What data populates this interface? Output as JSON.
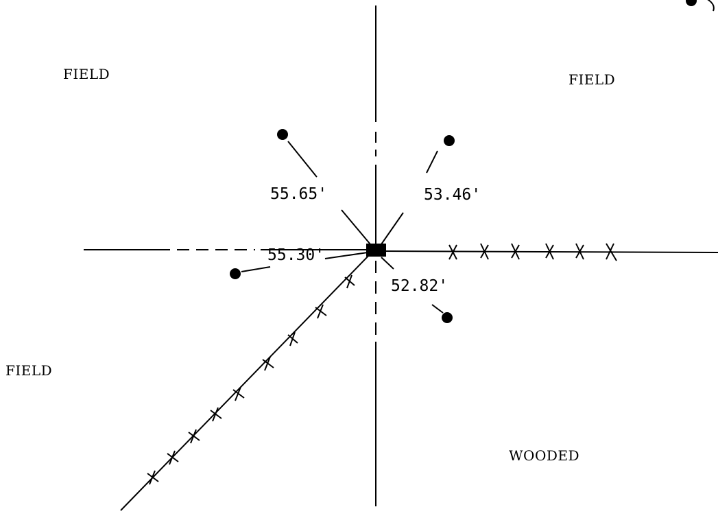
{
  "areas": {
    "top_left": "FIELD",
    "top_right": "FIELD",
    "left": "FIELD",
    "bottom_right": "WOODED"
  },
  "distances": {
    "nw": "55.65'",
    "ne": "53.46'",
    "w": "55.30'",
    "se": "52.82'"
  },
  "colors": {
    "ink": "#000000",
    "paper": "#ffffff"
  }
}
